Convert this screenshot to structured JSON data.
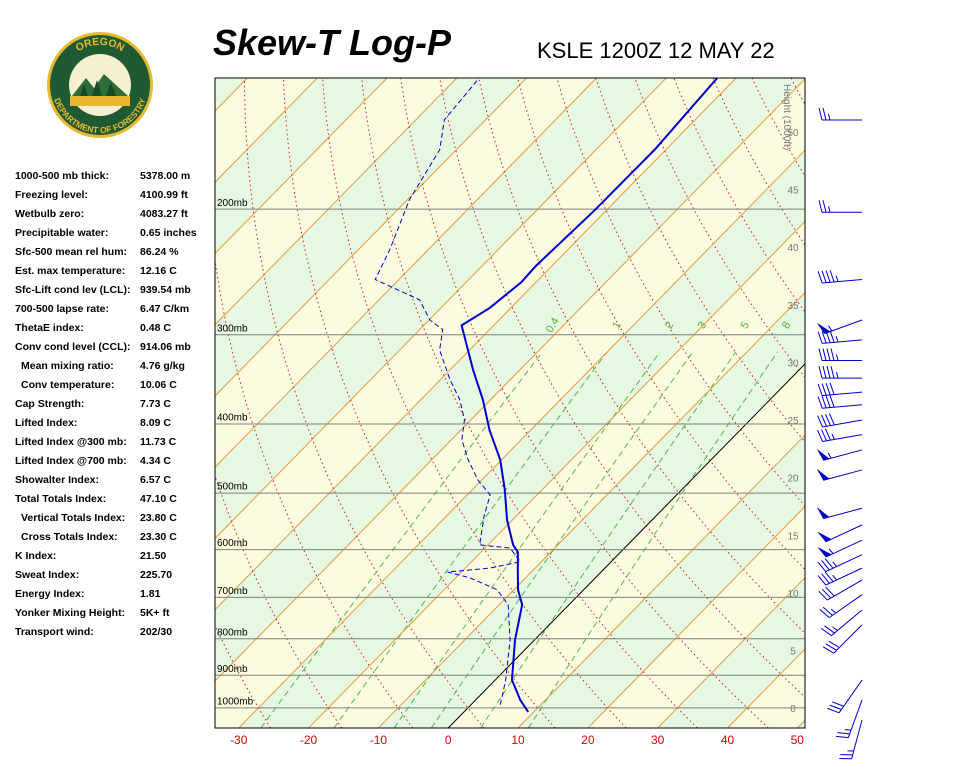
{
  "logo": {
    "top": "OREGON",
    "bottom": "DEPARTMENT OF FORESTRY"
  },
  "indices": [
    {
      "label": "1000-500 mb thick:",
      "value": "5378.00 m"
    },
    {
      "label": "Freezing level:",
      "value": "4100.99 ft"
    },
    {
      "label": "Wetbulb zero:",
      "value": "4083.27 ft"
    },
    {
      "label": "Precipitable water:",
      "value": "0.65 inches"
    },
    {
      "label": "Sfc-500 mean rel hum:",
      "value": "86.24 %"
    },
    {
      "label": "Est. max temperature:",
      "value": "12.16 C"
    },
    {
      "label": "Sfc-Lift cond lev (LCL):",
      "value": "939.54 mb"
    },
    {
      "label": "700-500 lapse rate:",
      "value": "6.47 C/km"
    },
    {
      "label": "ThetaE index:",
      "value": "0.48 C"
    },
    {
      "label": "Conv cond level (CCL):",
      "value": "914.06 mb",
      "sub": [
        {
          "label": "Mean mixing ratio:",
          "value": "4.76 g/kg"
        },
        {
          "label": "Conv temperature:",
          "value": "10.06 C"
        }
      ]
    },
    {
      "label": "Cap Strength:",
      "value": "7.73 C"
    },
    {
      "label": "Lifted Index:",
      "value": "8.09 C"
    },
    {
      "label": "Lifted Index @300 mb:",
      "value": "11.73 C"
    },
    {
      "label": "Lifted Index @700 mb:",
      "value": "4.34 C"
    },
    {
      "label": "Showalter Index:",
      "value": "6.57 C"
    },
    {
      "label": "Total Totals Index:",
      "value": "47.10 C",
      "sub": [
        {
          "label": "Vertical Totals Index:",
          "value": "23.80 C"
        },
        {
          "label": "Cross Totals Index:",
          "value": "23.30 C"
        }
      ]
    },
    {
      "label": "K Index:",
      "value": "21.50"
    },
    {
      "label": "Sweat Index:",
      "value": "225.70"
    },
    {
      "label": "Energy Index:",
      "value": "1.81"
    },
    {
      "label": "Yonker Mixing Height:",
      "value": "5K+ ft"
    },
    {
      "label": "Transport wind:",
      "value": "202/30"
    }
  ],
  "chart_data": {
    "type": "skewt",
    "title": "Skew-T Log-P",
    "subtitle": "KSLE 1200Z 12 MAY 22",
    "xlim": [
      -33.4,
      51.1
    ],
    "xticks": [
      -30,
      -20,
      -10,
      0,
      10,
      20,
      30,
      40,
      50
    ],
    "plim": [
      1067,
      131
    ],
    "pticks": [
      {
        "value": 1000,
        "label": "1000mb"
      },
      {
        "value": 900,
        "label": "900mb"
      },
      {
        "value": 800,
        "label": "800mb"
      },
      {
        "value": 700,
        "label": "700mb"
      },
      {
        "value": 600,
        "label": "600mb"
      },
      {
        "value": 500,
        "label": "500mb"
      },
      {
        "value": 400,
        "label": "400mb"
      },
      {
        "value": 300,
        "label": "300mb"
      },
      {
        "value": 200,
        "label": "200mb"
      }
    ],
    "height_axis_label": "Height (1000ft)",
    "height_lim": [
      -1.6,
      54.8
    ],
    "height_ticks": [
      0,
      5,
      10,
      15,
      20,
      25,
      30,
      35,
      40,
      45,
      50
    ],
    "mixing_ratio_lines": [
      {
        "value": 0.4,
        "label": "0.4"
      },
      1,
      2,
      3,
      5,
      8
    ],
    "series": [
      {
        "color": "#0000cc",
        "dashed": false,
        "pressure": [
          1013,
          975,
          914,
          803,
          717,
          683,
          641,
          605,
          591,
          545,
          495,
          449,
          408,
          370,
          336,
          291,
          275,
          253,
          240,
          201,
          165,
          131
        ],
        "values": [
          9.2,
          6.4,
          2.4,
          -2.8,
          -6.7,
          -9.4,
          -12.2,
          -14.7,
          -16.4,
          -20.8,
          -25.3,
          -30.2,
          -35.9,
          -41.1,
          -46.7,
          -54.6,
          -53.0,
          -52.1,
          -52.3,
          -51.7,
          -51.6,
          -52.7
        ]
      },
      {
        "color": "#0000cc",
        "dashed": true,
        "pressure": [
          990,
          914,
          803,
          717,
          683,
          657,
          645,
          637,
          624,
          597,
          591,
          537,
          503,
          479,
          449,
          421,
          395,
          370,
          347,
          315,
          295,
          286,
          268,
          251,
          228,
          194,
          165,
          150,
          131
        ],
        "values": [
          4.2,
          1.5,
          -3.5,
          -8.7,
          -12.4,
          -18.0,
          -22.0,
          -16.5,
          -13.0,
          -16.4,
          -21.2,
          -24.7,
          -26.7,
          -30.6,
          -34.8,
          -38.5,
          -40.9,
          -44.4,
          -48.6,
          -54.3,
          -56.7,
          -59.9,
          -64.2,
          -73.4,
          -75.5,
          -79.7,
          -82.4,
          -85.9,
          -86.8
        ]
      }
    ],
    "winds": {
      "color": "#0000cc",
      "pressure": [
        150,
        202,
        251,
        286,
        305,
        326,
        345,
        361,
        376,
        395,
        414,
        435,
        464,
        525,
        554,
        582,
        610,
        637,
        662,
        694,
        729,
        765,
        914,
        975,
        1040
      ],
      "direction": [
        270,
        270,
        265,
        250,
        265,
        270,
        270,
        265,
        265,
        260,
        260,
        255,
        255,
        255,
        245,
        245,
        245,
        245,
        240,
        235,
        230,
        225,
        215,
        200,
        195
      ],
      "speed": [
        25,
        25,
        45,
        55,
        45,
        45,
        45,
        40,
        40,
        40,
        35,
        55,
        50,
        50,
        50,
        55,
        35,
        35,
        30,
        25,
        25,
        30,
        30,
        25,
        25
      ]
    }
  }
}
